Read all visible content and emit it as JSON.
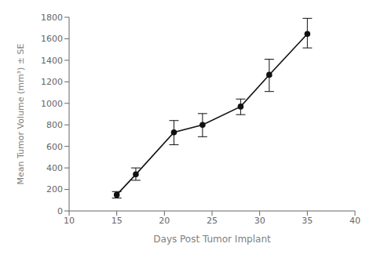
{
  "chart_data": {
    "type": "line",
    "xlabel": "Days Post Tumor Implant",
    "ylabel": "Mean Tumor Volume (mm³) ± SE",
    "x": [
      15,
      17,
      21,
      24,
      28,
      31,
      35
    ],
    "values": [
      150,
      340,
      730,
      800,
      970,
      1265,
      1645
    ],
    "error_upper": [
      30,
      60,
      110,
      105,
      70,
      145,
      145
    ],
    "error_lower": [
      30,
      55,
      115,
      110,
      75,
      155,
      130
    ],
    "xlim": [
      10,
      40
    ],
    "ylim": [
      0,
      1800
    ],
    "xticks": [
      10,
      15,
      20,
      25,
      30,
      35,
      40
    ],
    "yticks": [
      0,
      200,
      400,
      600,
      800,
      1000,
      1200,
      1400,
      1600,
      1800
    ],
    "color": "#111111",
    "marker": "circle",
    "grid": false
  }
}
